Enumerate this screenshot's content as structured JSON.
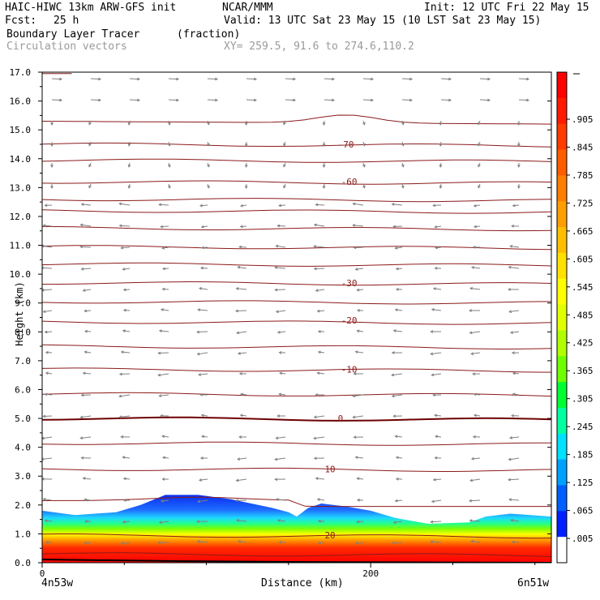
{
  "header": {
    "model": "HAIC-HIWC 13km ARW-GFS init",
    "org": "NCAR/MMM",
    "init": "Init: 12 UTC Fri 22 May 15",
    "fcst_label": "Fcst:",
    "fcst_value": "25 h",
    "valid": "Valid: 13 UTC Sat 23 May 15 (10 LST Sat 23 May 15)",
    "field_name": "Boundary Layer Tracer",
    "field_units": "(fraction)",
    "vector_label": "Circulation vectors",
    "xy_label": "XY= 259.5, 91.6 to 274.6,110.2"
  },
  "chart_data": {
    "type": "cross-section",
    "ylabel": "Height (km)",
    "xlabel": "Distance (km)",
    "xlim": [
      0,
      310
    ],
    "ylim": [
      0,
      17
    ],
    "y_ticks": [
      "0.0",
      "1.0",
      "2.0",
      "3.0",
      "4.0",
      "5.0",
      "6.0",
      "7.0",
      "8.0",
      "9.0",
      "10.0",
      "11.0",
      "12.0",
      "13.0",
      "14.0",
      "15.0",
      "16.0",
      "17.0"
    ],
    "x_ticks": [
      {
        "value": 0,
        "label": "0"
      },
      {
        "value": 200,
        "label": "200"
      }
    ],
    "x_left_label": "4n53w",
    "x_right_label": "6n51w",
    "tracer_top_km": [
      [
        0,
        1.8
      ],
      [
        20,
        1.65
      ],
      [
        45,
        1.75
      ],
      [
        60,
        2.0
      ],
      [
        75,
        2.35
      ],
      [
        95,
        2.35
      ],
      [
        115,
        2.2
      ],
      [
        140,
        1.9
      ],
      [
        150,
        1.75
      ],
      [
        155,
        1.6
      ],
      [
        162,
        1.9
      ],
      [
        170,
        2.05
      ],
      [
        185,
        1.95
      ],
      [
        200,
        1.8
      ],
      [
        215,
        1.55
      ],
      [
        235,
        1.35
      ],
      [
        260,
        1.4
      ],
      [
        270,
        1.6
      ],
      [
        285,
        1.7
      ],
      [
        310,
        1.6
      ]
    ],
    "contour_labels": [
      {
        "label": "-70",
        "x": 180,
        "y": 14.5
      },
      {
        "label": "-60",
        "x": 182,
        "y": 13.2
      },
      {
        "label": "-30",
        "x": 182,
        "y": 9.7
      },
      {
        "label": "-20",
        "x": 182,
        "y": 8.4
      },
      {
        "label": "-10",
        "x": 182,
        "y": 6.7
      },
      {
        "label": "0",
        "x": 180,
        "y": 5.0
      },
      {
        "label": "10",
        "x": 172,
        "y": 3.25
      },
      {
        "label": "20",
        "x": 172,
        "y": 0.95
      }
    ],
    "colorbar": {
      "labels": [
        ".905",
        ".845",
        ".785",
        ".725",
        ".665",
        ".605",
        ".545",
        ".485",
        ".425",
        ".365",
        ".305",
        ".245",
        ".185",
        ".125",
        ".065",
        ".005"
      ],
      "colors": [
        "#ff0000",
        "#ff1a00",
        "#ff3b00",
        "#ff5c00",
        "#ff7d00",
        "#ff9e00",
        "#ffbf00",
        "#ffe000",
        "#ffff00",
        "#e0ff00",
        "#b0ff00",
        "#70ff00",
        "#00ff30",
        "#00ffa0",
        "#00e0ff",
        "#00a0ff",
        "#0060ff",
        "#0020ff",
        "#ffffff"
      ]
    }
  }
}
